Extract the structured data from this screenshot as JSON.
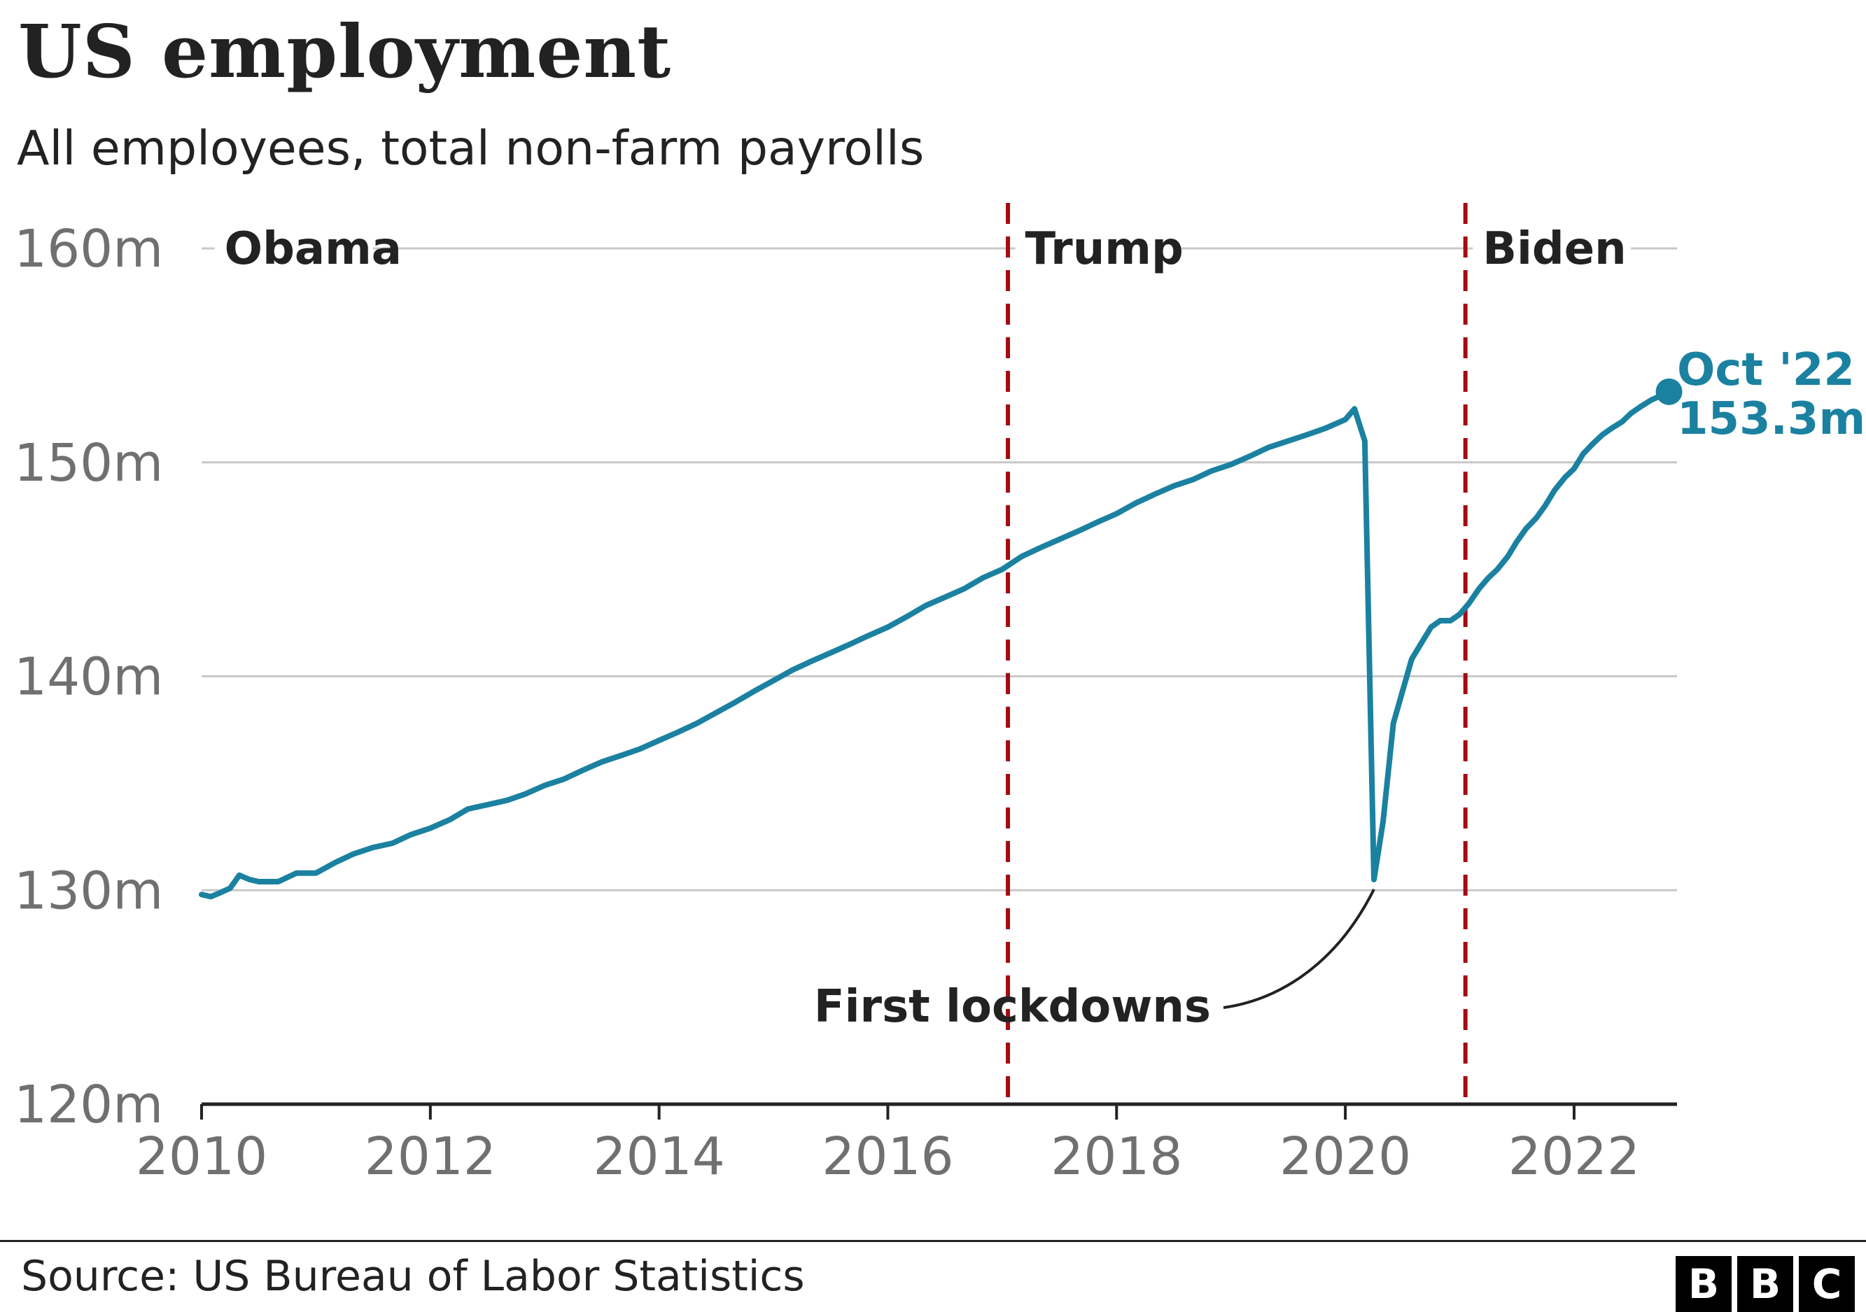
{
  "title": "US employment",
  "subtitle": "All employees, total non-farm payrolls",
  "source": "Source: US Bureau of Labor Statistics",
  "logo": [
    "B",
    "B",
    "C"
  ],
  "colors": {
    "series": "#1b81a0",
    "divider": "#a40b12",
    "grid": "#c8c8c8",
    "axis": "#222222",
    "tick_text": "#707070"
  },
  "chart_data": {
    "type": "line",
    "title": "US employment",
    "subtitle": "All employees, total non-farm payrolls",
    "xlabel": "",
    "ylabel": "",
    "xlim": [
      2010.0,
      2022.9
    ],
    "ylim": [
      120,
      160
    ],
    "y_ticks": [
      120,
      130,
      140,
      150,
      160
    ],
    "y_tick_labels": [
      "120m",
      "130m",
      "140m",
      "150m",
      "160m"
    ],
    "x_ticks": [
      2010,
      2012,
      2014,
      2016,
      2018,
      2020,
      2022
    ],
    "x_tick_labels": [
      "2010",
      "2012",
      "2014",
      "2016",
      "2018",
      "2020",
      "2022"
    ],
    "grid": true,
    "series": [
      {
        "points": [
          [
            2010.0,
            129.8
          ],
          [
            2010.08,
            129.7
          ],
          [
            2010.17,
            129.9
          ],
          [
            2010.25,
            130.1
          ],
          [
            2010.33,
            130.7
          ],
          [
            2010.42,
            130.5
          ],
          [
            2010.5,
            130.4
          ],
          [
            2010.67,
            130.4
          ],
          [
            2010.83,
            130.8
          ],
          [
            2011.0,
            130.8
          ],
          [
            2011.17,
            131.3
          ],
          [
            2011.33,
            131.7
          ],
          [
            2011.5,
            132.0
          ],
          [
            2011.67,
            132.2
          ],
          [
            2011.83,
            132.6
          ],
          [
            2012.0,
            132.9
          ],
          [
            2012.17,
            133.3
          ],
          [
            2012.33,
            133.8
          ],
          [
            2012.5,
            134.0
          ],
          [
            2012.67,
            134.2
          ],
          [
            2012.83,
            134.5
          ],
          [
            2013.0,
            134.9
          ],
          [
            2013.17,
            135.2
          ],
          [
            2013.33,
            135.6
          ],
          [
            2013.5,
            136.0
          ],
          [
            2013.67,
            136.3
          ],
          [
            2013.83,
            136.6
          ],
          [
            2014.0,
            137.0
          ],
          [
            2014.17,
            137.4
          ],
          [
            2014.33,
            137.8
          ],
          [
            2014.5,
            138.3
          ],
          [
            2014.67,
            138.8
          ],
          [
            2014.83,
            139.3
          ],
          [
            2015.0,
            139.8
          ],
          [
            2015.17,
            140.3
          ],
          [
            2015.33,
            140.7
          ],
          [
            2015.5,
            141.1
          ],
          [
            2015.67,
            141.5
          ],
          [
            2015.83,
            141.9
          ],
          [
            2016.0,
            142.3
          ],
          [
            2016.17,
            142.8
          ],
          [
            2016.33,
            143.3
          ],
          [
            2016.5,
            143.7
          ],
          [
            2016.67,
            144.1
          ],
          [
            2016.83,
            144.6
          ],
          [
            2017.0,
            145.0
          ],
          [
            2017.17,
            145.6
          ],
          [
            2017.33,
            146.0
          ],
          [
            2017.5,
            146.4
          ],
          [
            2017.67,
            146.8
          ],
          [
            2017.83,
            147.2
          ],
          [
            2018.0,
            147.6
          ],
          [
            2018.17,
            148.1
          ],
          [
            2018.33,
            148.5
          ],
          [
            2018.5,
            148.9
          ],
          [
            2018.67,
            149.2
          ],
          [
            2018.83,
            149.6
          ],
          [
            2019.0,
            149.9
          ],
          [
            2019.17,
            150.3
          ],
          [
            2019.33,
            150.7
          ],
          [
            2019.5,
            151.0
          ],
          [
            2019.67,
            151.3
          ],
          [
            2019.83,
            151.6
          ],
          [
            2020.0,
            152.0
          ],
          [
            2020.08,
            152.5
          ],
          [
            2020.17,
            151.0
          ],
          [
            2020.25,
            130.5
          ],
          [
            2020.33,
            133.2
          ],
          [
            2020.42,
            137.8
          ],
          [
            2020.5,
            139.3
          ],
          [
            2020.58,
            140.8
          ],
          [
            2020.67,
            141.6
          ],
          [
            2020.75,
            142.3
          ],
          [
            2020.83,
            142.6
          ],
          [
            2020.92,
            142.6
          ],
          [
            2021.0,
            142.9
          ],
          [
            2021.08,
            143.4
          ],
          [
            2021.17,
            144.1
          ],
          [
            2021.25,
            144.6
          ],
          [
            2021.33,
            145.0
          ],
          [
            2021.42,
            145.6
          ],
          [
            2021.5,
            146.3
          ],
          [
            2021.58,
            146.9
          ],
          [
            2021.67,
            147.4
          ],
          [
            2021.75,
            148.0
          ],
          [
            2021.83,
            148.7
          ],
          [
            2021.92,
            149.3
          ],
          [
            2022.0,
            149.7
          ],
          [
            2022.08,
            150.4
          ],
          [
            2022.17,
            150.9
          ],
          [
            2022.25,
            151.3
          ],
          [
            2022.33,
            151.6
          ],
          [
            2022.42,
            151.9
          ],
          [
            2022.5,
            152.3
          ],
          [
            2022.58,
            152.6
          ],
          [
            2022.67,
            152.9
          ],
          [
            2022.75,
            153.1
          ],
          [
            2022.83,
            153.3
          ]
        ]
      }
    ],
    "dividers": [
      {
        "x": 2017.05,
        "label": "Trump"
      },
      {
        "x": 2021.05,
        "label": "Biden"
      }
    ],
    "era_labels": [
      {
        "x": 2010.2,
        "label": "Obama"
      },
      {
        "x": 2017.2,
        "label": "Trump"
      },
      {
        "x": 2021.2,
        "label": "Biden"
      }
    ],
    "last_point_label": {
      "line1": "Oct '22",
      "line2": "153.3m",
      "x": 2022.83,
      "y": 153.3
    },
    "annotations": [
      {
        "text": "First lockdowns",
        "x": 2020.25,
        "y": 130.5
      }
    ]
  }
}
